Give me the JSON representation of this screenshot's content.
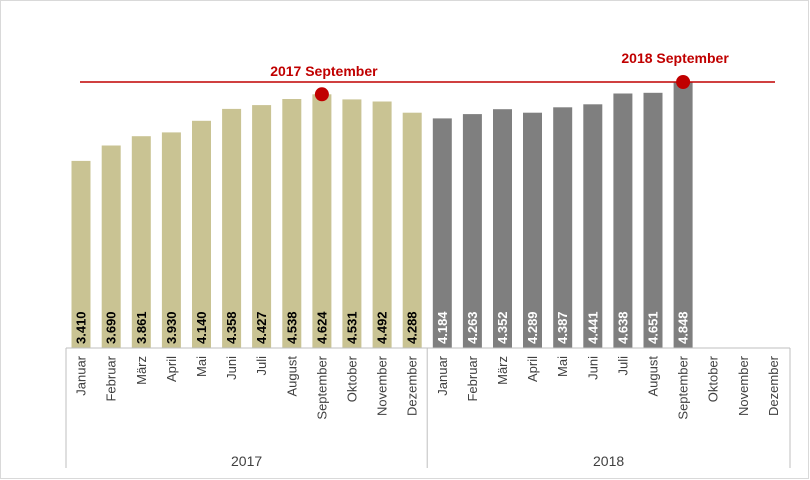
{
  "chart_data": {
    "type": "bar",
    "title": "",
    "xlabel": "",
    "ylabel": "",
    "ylim": [
      0,
      4848
    ],
    "grid": false,
    "legend": "none",
    "groups": [
      {
        "label": "2017",
        "color": "#c9c393",
        "label_color": "#000000",
        "categories": [
          "Januar",
          "Februar",
          "März",
          "April",
          "Mai",
          "Juni",
          "Juli",
          "August",
          "September",
          "Oktober",
          "November",
          "Dezember"
        ],
        "values": [
          3410,
          3690,
          3861,
          3930,
          4140,
          4358,
          4427,
          4538,
          4624,
          4531,
          4492,
          4288
        ],
        "value_labels": [
          "3.410",
          "3.690",
          "3.861",
          "3.930",
          "4.140",
          "4.358",
          "4.427",
          "4.538",
          "4.624",
          "4.531",
          "4.492",
          "4.288"
        ]
      },
      {
        "label": "2018",
        "color": "#7f7f7f",
        "label_color": "#ffffff",
        "categories": [
          "Januar",
          "Februar",
          "März",
          "April",
          "Mai",
          "Juni",
          "Juli",
          "August",
          "September",
          "Oktober",
          "November",
          "Dezember"
        ],
        "values": [
          4184,
          4263,
          4352,
          4289,
          4387,
          4441,
          4638,
          4651,
          4848,
          null,
          null,
          null
        ],
        "value_labels": [
          "4.184",
          "4.263",
          "4.352",
          "4.289",
          "4.387",
          "4.441",
          "4.638",
          "4.651",
          "4.848",
          "",
          "",
          ""
        ]
      }
    ],
    "reference_line": {
      "value": 4848,
      "color": "#c00000"
    },
    "annotations": [
      {
        "text": "2017 September",
        "group": 0,
        "index": 8,
        "color": "#c00000"
      },
      {
        "text": "2018 September",
        "group": 1,
        "index": 8,
        "color": "#c00000"
      }
    ]
  }
}
